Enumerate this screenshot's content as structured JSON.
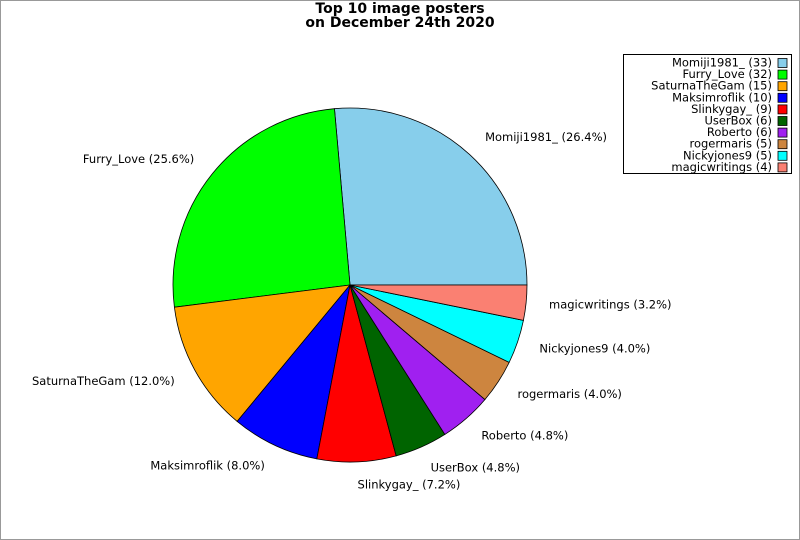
{
  "chart_data": {
    "type": "pie",
    "title": "Top 10 image posters\non December 24th 2020",
    "categories": [
      "Momiji1981_ (33)",
      "Furry_Love (32)",
      "SaturnaTheGam (15)",
      "Maksimroflik (10)",
      "Slinkygay_ (9)",
      "UserBox (6)",
      "Roberto (6)",
      "rogermaris (5)",
      "Nickyjones9 (5)",
      "magicwritings (4)"
    ],
    "values": [
      26.4,
      25.6,
      12.0,
      8.0,
      7.2,
      4.8,
      4.8,
      4.0,
      4.0,
      3.2
    ],
    "value_labels": [
      "Momiji1981_ (26.4%)",
      "Furry_Love (25.6%)",
      "SaturnaTheGam (12.0%)",
      "Maksimroflik (8.0%)",
      "Slinkygay_ (7.2%)",
      "UserBox (4.8%)",
      "Roberto (4.8%)",
      "rogermaris (4.0%)",
      "Nickyjones9 (4.0%)",
      "magicwritings (3.2%)"
    ],
    "colors": [
      "#87ceeb",
      "#00ff00",
      "#ffa500",
      "#0000ff",
      "#ff0000",
      "#006400",
      "#a020f0",
      "#cd853f",
      "#00ffff",
      "#fa8072"
    ],
    "legend": "upper right"
  }
}
